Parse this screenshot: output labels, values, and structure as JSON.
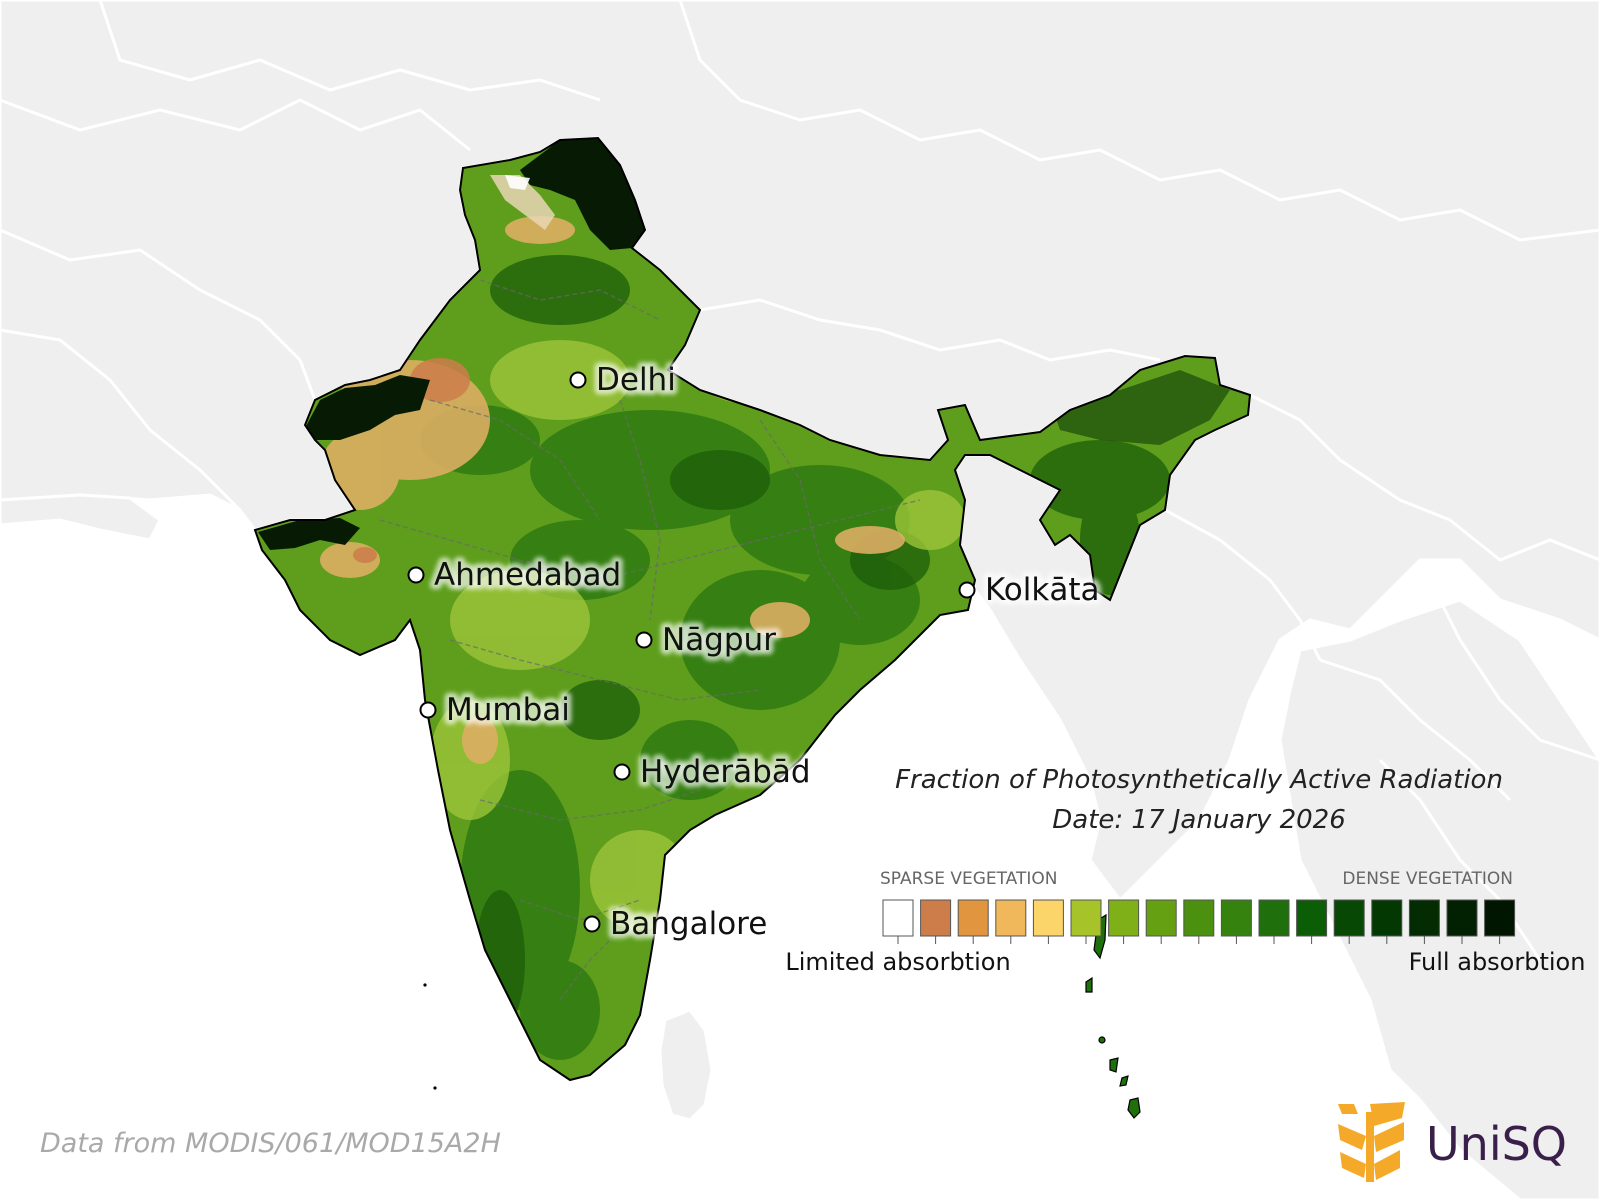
{
  "map": {
    "title": "Fraction of Photosynthetically Active Radiation",
    "date_line": "Date: 17 January 2026",
    "source_credit": "Data from MODIS/061/MOD15A2H"
  },
  "cities": [
    {
      "name": "Delhi"
    },
    {
      "name": "Ahmedabad"
    },
    {
      "name": "Kolkāta"
    },
    {
      "name": "Nāgpur"
    },
    {
      "name": "Mumbai"
    },
    {
      "name": "Hyderābād"
    },
    {
      "name": "Bangalore"
    }
  ],
  "legend": {
    "top_left": "SPARSE VEGETATION",
    "top_right": "DENSE VEGETATION",
    "bottom_left": "Limited absorbtion",
    "bottom_right": "Full absorbtion",
    "swatches": [
      "#ffffff",
      "#cc7d4a",
      "#e0953e",
      "#f0b85a",
      "#fbd46a",
      "#a6c42a",
      "#7fb018",
      "#64a012",
      "#4b900f",
      "#36820e",
      "#1f700c",
      "#0b5e06",
      "#064804",
      "#043803",
      "#032c02",
      "#022002",
      "#011601"
    ]
  },
  "colors": {
    "ocean": "#ffffff",
    "land": "#efefef",
    "borders": "#ffffff",
    "india_outline": "#000000",
    "vegetation_base": "#5e9e1c"
  },
  "logo": {
    "brand": "UniSQ"
  }
}
